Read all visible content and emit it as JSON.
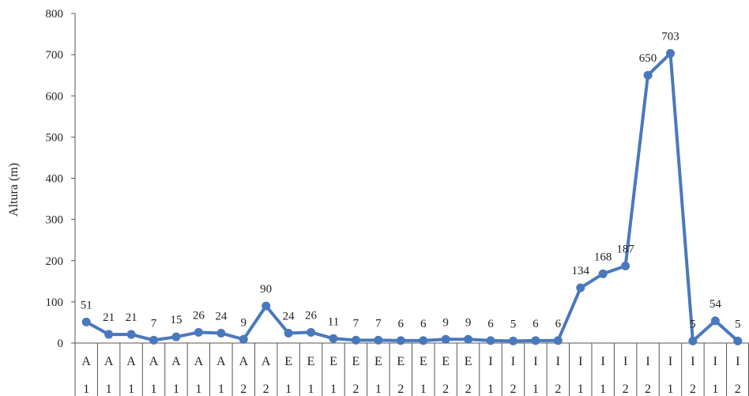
{
  "chart_data": {
    "type": "line",
    "title": "",
    "xlabel": "",
    "ylabel": "Altura (m)",
    "ylim": [
      0,
      800
    ],
    "yticks": [
      0,
      100,
      200,
      300,
      400,
      500,
      600,
      700,
      800
    ],
    "grid": false,
    "legend": "none",
    "line_color": "#4a78bd",
    "categories": [
      {
        "letter": "A",
        "digit": "1"
      },
      {
        "letter": "A",
        "digit": "1"
      },
      {
        "letter": "A",
        "digit": "1"
      },
      {
        "letter": "A",
        "digit": "1"
      },
      {
        "letter": "A",
        "digit": "1"
      },
      {
        "letter": "A",
        "digit": "1"
      },
      {
        "letter": "A",
        "digit": "1"
      },
      {
        "letter": "A",
        "digit": "2"
      },
      {
        "letter": "A",
        "digit": "2"
      },
      {
        "letter": "E",
        "digit": "1"
      },
      {
        "letter": "E",
        "digit": "1"
      },
      {
        "letter": "E",
        "digit": "1"
      },
      {
        "letter": "E",
        "digit": "2"
      },
      {
        "letter": "E",
        "digit": "1"
      },
      {
        "letter": "E",
        "digit": "2"
      },
      {
        "letter": "E",
        "digit": "1"
      },
      {
        "letter": "E",
        "digit": "2"
      },
      {
        "letter": "E",
        "digit": "2"
      },
      {
        "letter": "I",
        "digit": "1"
      },
      {
        "letter": "I",
        "digit": "2"
      },
      {
        "letter": "I",
        "digit": "1"
      },
      {
        "letter": "I",
        "digit": "2"
      },
      {
        "letter": "I",
        "digit": "1"
      },
      {
        "letter": "I",
        "digit": "1"
      },
      {
        "letter": "I",
        "digit": "2"
      },
      {
        "letter": "I",
        "digit": "2"
      },
      {
        "letter": "I",
        "digit": "1"
      },
      {
        "letter": "I",
        "digit": "2"
      },
      {
        "letter": "I",
        "digit": "1"
      },
      {
        "letter": "I",
        "digit": "2"
      }
    ],
    "values": [
      51,
      21,
      21,
      7,
      15,
      26,
      24,
      9,
      90,
      24,
      26,
      11,
      7,
      7,
      6,
      6,
      9,
      9,
      6,
      5,
      6,
      6,
      134,
      168,
      187,
      650,
      703,
      5,
      54,
      5
    ]
  }
}
